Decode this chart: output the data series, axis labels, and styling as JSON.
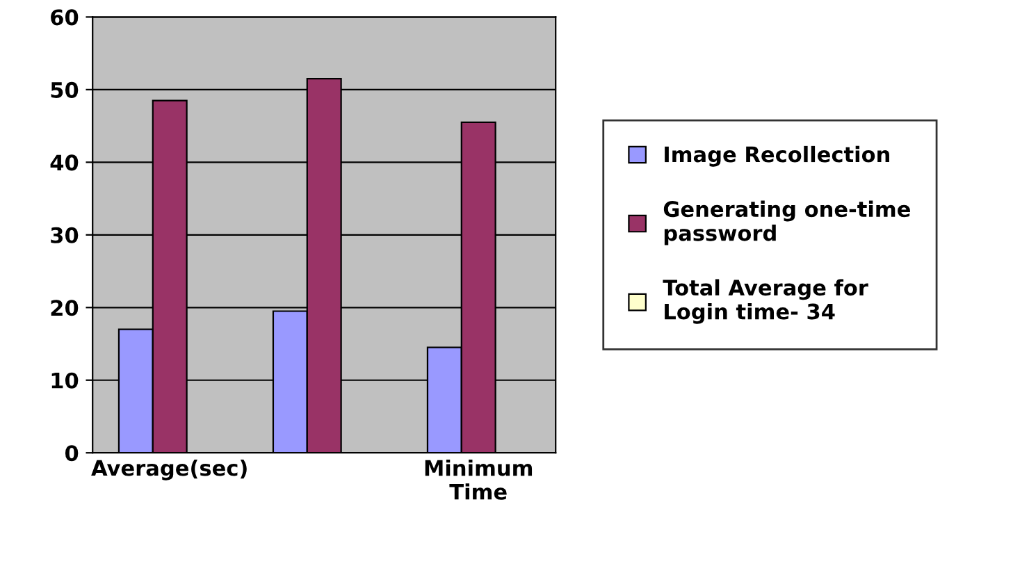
{
  "chart_data": {
    "type": "bar",
    "categories": [
      "Average(sec)",
      null,
      "Minimum Time"
    ],
    "series": [
      {
        "name": "Image Recollection",
        "color": "#9999ff",
        "values": [
          17,
          19.5,
          14.5
        ]
      },
      {
        "name": "Generating one-time password",
        "color": "#993366",
        "values": [
          48.5,
          51.5,
          45.5
        ]
      },
      {
        "name": "Total Average for Login time- 34",
        "color": "#ffffcc",
        "values": [
          null,
          null,
          null
        ]
      }
    ],
    "ylim": [
      0,
      60
    ],
    "yticks": [
      0,
      10,
      20,
      30,
      40,
      50,
      60
    ],
    "grid": "y",
    "legend": "right"
  }
}
